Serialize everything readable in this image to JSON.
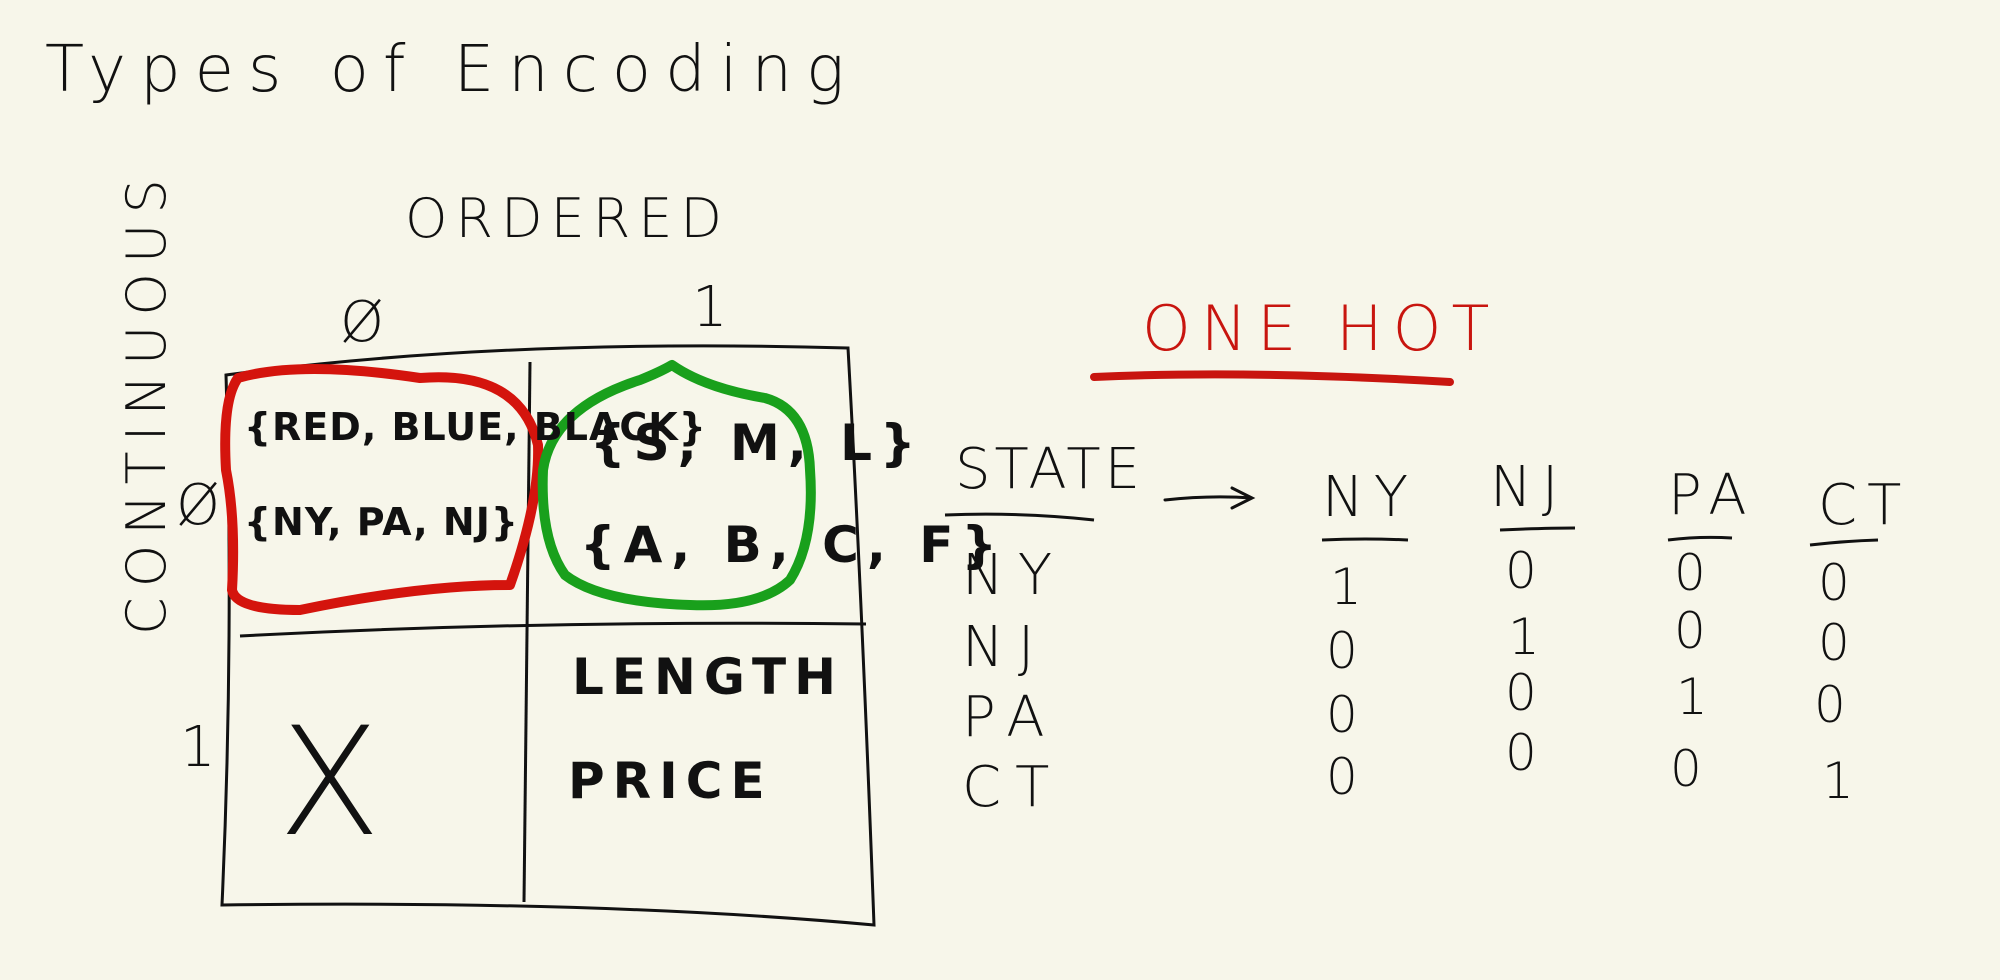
{
  "title": "Types of Encoding",
  "axes": {
    "top_label": "ORDERED",
    "side_label": "CONTINUOUS",
    "top_values": [
      "Ø",
      "1"
    ],
    "side_values": [
      "Ø",
      "1"
    ]
  },
  "grid": {
    "cell_00": {
      "lines": [
        "{RED, BLUE, BLACK}",
        "{NY, PA, NJ}"
      ],
      "highlight_color": "#d4140d"
    },
    "cell_01": {
      "lines": [
        "{S, M, L}",
        "{A, B, C, F}"
      ],
      "highlight_color": "#19a01c"
    },
    "cell_10": {
      "mark": "X"
    },
    "cell_11": {
      "lines": [
        "LENGTH",
        "PRICE"
      ]
    }
  },
  "one_hot": {
    "title": "ONE HOT",
    "title_color": "#c8150f",
    "state_header": "STATE",
    "states": [
      "NY",
      "NJ",
      "PA",
      "CT"
    ],
    "columns": [
      {
        "name": "NY",
        "values": [
          "1",
          "0",
          "0",
          "0"
        ]
      },
      {
        "name": "NJ",
        "values": [
          "0",
          "1",
          "0",
          "0"
        ]
      },
      {
        "name": "PA",
        "values": [
          "0",
          "0",
          "1",
          "0"
        ]
      },
      {
        "name": "CT",
        "values": [
          "0",
          "0",
          "0",
          "1"
        ]
      }
    ]
  }
}
